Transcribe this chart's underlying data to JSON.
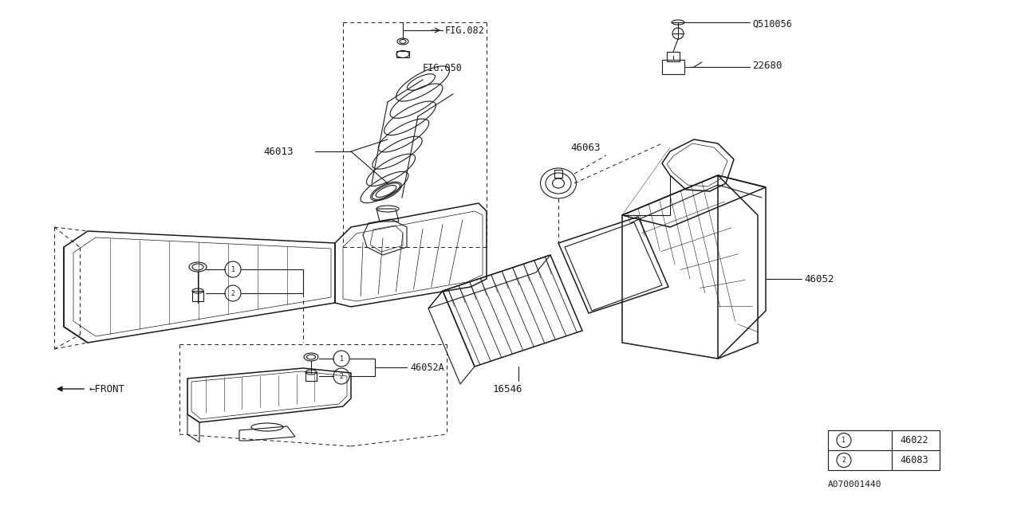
{
  "bg_color": "#ffffff",
  "line_color": "#1a1a1a",
  "fig_width": 12.8,
  "fig_height": 6.4,
  "diagram_id": "A070001440",
  "legend": [
    {
      "num": "1",
      "code": "46022"
    },
    {
      "num": "2",
      "code": "46083"
    }
  ]
}
